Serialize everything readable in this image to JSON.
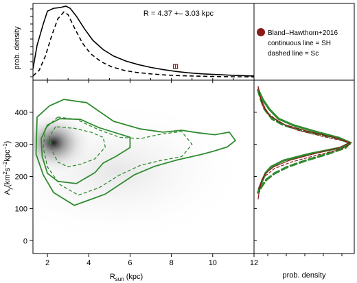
{
  "colors": {
    "contour_green": "#2e8b2e",
    "bh_red": "#8b1a1a",
    "density_dark": "#111111"
  },
  "annotation_text": "R =  4.37 +– 3.03  kpc",
  "legend": {
    "marker_label": "Bland–Hawthorn+2016",
    "line1": "continuous line = SH",
    "line2": "dashed line = Sc"
  },
  "chart_data": [
    {
      "type": "line",
      "panel": "top-marginal",
      "ylabel": "prob. density",
      "xlim": [
        1.3,
        12
      ],
      "series": [
        {
          "name": "SH",
          "style": "solid",
          "x": [
            1.3,
            1.5,
            1.8,
            2.0,
            2.3,
            2.6,
            2.9,
            3.1,
            3.4,
            3.8,
            4.2,
            4.7,
            5.2,
            5.8,
            6.4,
            7.0,
            7.6,
            8.2,
            8.8,
            9.5,
            10.2,
            11.0,
            12.0
          ],
          "y": [
            0.12,
            0.45,
            0.75,
            0.93,
            0.97,
            0.98,
            1.0,
            0.97,
            0.86,
            0.68,
            0.52,
            0.39,
            0.3,
            0.23,
            0.18,
            0.14,
            0.11,
            0.085,
            0.065,
            0.05,
            0.04,
            0.03,
            0.02
          ]
        },
        {
          "name": "Sc",
          "style": "dashed",
          "x": [
            1.3,
            1.6,
            1.9,
            2.2,
            2.5,
            2.8,
            3.0,
            3.3,
            3.7,
            4.1,
            4.6,
            5.1,
            5.7,
            6.3,
            7.0,
            7.7,
            8.4,
            9.2,
            10.0,
            11.0,
            12.0
          ],
          "y": [
            0.02,
            0.1,
            0.3,
            0.58,
            0.82,
            0.92,
            0.88,
            0.7,
            0.48,
            0.33,
            0.22,
            0.15,
            0.1,
            0.07,
            0.05,
            0.035,
            0.025,
            0.018,
            0.013,
            0.01,
            0.007
          ]
        }
      ],
      "reference_point": {
        "x": 8.2,
        "x_err": 0.1
      }
    },
    {
      "type": "scatter",
      "panel": "main",
      "xlabel": "R_sun (kpc)",
      "ylabel": "A_y(km^2 s^-2 kpc^-1)",
      "xlim": [
        1.3,
        12
      ],
      "ylim": [
        -40,
        500
      ],
      "x_ticks": [
        2,
        4,
        6,
        8,
        10,
        12
      ],
      "y_ticks": [
        0,
        100,
        200,
        300,
        400
      ],
      "density_peak": {
        "x": 2.3,
        "y": 305
      },
      "contours": [
        {
          "style": "solid",
          "level": "outer",
          "x": [
            2.8,
            2.1,
            1.5,
            1.45,
            1.8,
            2.3,
            3.3,
            4.8,
            6.2,
            7.2,
            8.3,
            9.4,
            10.0,
            10.7,
            11.1,
            10.8,
            10.1,
            9.3,
            8.5,
            7.6,
            6.5,
            5.2,
            3.9,
            2.8
          ],
          "y": [
            440,
            420,
            385,
            270,
            205,
            150,
            110,
            145,
            205,
            232,
            252,
            268,
            278,
            292,
            312,
            338,
            330,
            336,
            344,
            338,
            348,
            372,
            430,
            440
          ]
        },
        {
          "style": "solid",
          "level": "middle",
          "x": [
            2.6,
            2.0,
            1.7,
            1.75,
            2.0,
            2.5,
            3.4,
            4.3,
            4.7,
            5.3,
            6.0,
            6.0,
            5.3,
            4.5,
            3.6,
            2.6
          ],
          "y": [
            380,
            360,
            318,
            262,
            210,
            185,
            178,
            212,
            242,
            262,
            290,
            322,
            336,
            352,
            378,
            380
          ]
        },
        {
          "style": "dashed",
          "level": "outer",
          "x": [
            2.5,
            1.9,
            1.8,
            2.0,
            2.6,
            3.5,
            4.5,
            5.5,
            6.5,
            7.5,
            8.5,
            9.0,
            8.5,
            7.5,
            6.5,
            5.5,
            4.5,
            3.4,
            2.5
          ],
          "y": [
            385,
            350,
            290,
            230,
            175,
            142,
            165,
            205,
            235,
            250,
            262,
            300,
            340,
            332,
            318,
            322,
            345,
            378,
            385
          ]
        },
        {
          "style": "dashed",
          "level": "middle",
          "x": [
            2.4,
            2.1,
            2.2,
            2.5,
            3.0,
            3.6,
            4.3,
            4.8,
            4.7,
            4.1,
            3.3,
            2.4
          ],
          "y": [
            355,
            325,
            285,
            245,
            230,
            238,
            255,
            292,
            322,
            338,
            350,
            355
          ]
        }
      ]
    },
    {
      "type": "line",
      "panel": "right-marginal",
      "xlabel": "prob. density",
      "orientation": "horizontal",
      "ylim": [
        -40,
        500
      ],
      "series": [
        {
          "name": "SH",
          "style": "solid",
          "color": "#2e8b2e",
          "y": [
            470,
            440,
            410,
            380,
            360,
            340,
            320,
            305,
            290,
            270,
            250,
            230,
            210,
            190,
            170,
            150
          ],
          "x": [
            0.0,
            0.05,
            0.12,
            0.22,
            0.38,
            0.62,
            0.88,
            1.0,
            0.9,
            0.55,
            0.28,
            0.14,
            0.08,
            0.05,
            0.02,
            0.0
          ]
        },
        {
          "name": "Sc",
          "style": "dashed",
          "color": "#2e8b2e",
          "y": [
            470,
            440,
            410,
            380,
            360,
            340,
            320,
            305,
            290,
            270,
            250,
            230,
            210,
            190,
            170,
            150
          ],
          "x": [
            0.0,
            0.03,
            0.07,
            0.15,
            0.28,
            0.52,
            0.85,
            1.0,
            0.95,
            0.75,
            0.52,
            0.32,
            0.18,
            0.09,
            0.04,
            0.0
          ]
        },
        {
          "name": "Bland-Hawthorn+2016",
          "style": "solid",
          "color": "#8b1a1a",
          "y": [
            480,
            450,
            420,
            390,
            360,
            340,
            320,
            305,
            290,
            270,
            250,
            230,
            210,
            190,
            160,
            130
          ],
          "x": [
            0.0,
            0.02,
            0.05,
            0.12,
            0.3,
            0.55,
            0.85,
            1.0,
            0.88,
            0.6,
            0.34,
            0.17,
            0.08,
            0.04,
            0.015,
            0.0
          ]
        },
        {
          "name": "Bland-Hawthorn+2016 (dashed)",
          "style": "dashed",
          "color": "#8b1a1a",
          "y": [
            480,
            440,
            400,
            370,
            345,
            325,
            310,
            300,
            285,
            265,
            245,
            225,
            200,
            180,
            160
          ],
          "x": [
            0.0,
            0.03,
            0.1,
            0.22,
            0.42,
            0.7,
            0.94,
            1.0,
            0.9,
            0.62,
            0.36,
            0.18,
            0.07,
            0.03,
            0.0
          ]
        }
      ]
    }
  ]
}
